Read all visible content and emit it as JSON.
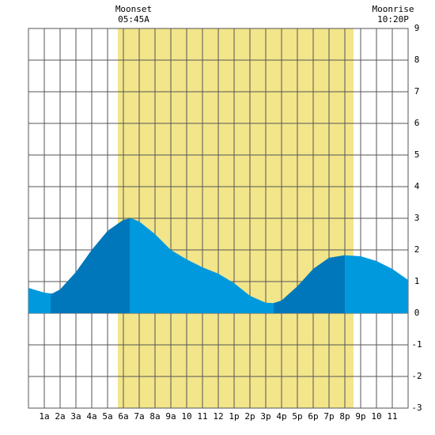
{
  "chart_data": {
    "type": "area",
    "events": [
      {
        "label": "Moonset",
        "time": "05:45A"
      },
      {
        "label": "Moonrise",
        "time": "10:20P"
      }
    ],
    "daylight": [
      5.65,
      20.55
    ],
    "rising_ranges": [
      [
        1.4,
        6.4
      ],
      [
        15.5,
        20
      ]
    ],
    "x": [
      0,
      1,
      1.5,
      2,
      3,
      4,
      5,
      6,
      6.5,
      7,
      8,
      9,
      10,
      11,
      12,
      13,
      14,
      15,
      15.5,
      16,
      17,
      18,
      19,
      20,
      21,
      22,
      23,
      24
    ],
    "values": [
      0.8,
      0.65,
      0.62,
      0.75,
      1.3,
      2.0,
      2.6,
      2.95,
      3.0,
      2.9,
      2.5,
      2.0,
      1.7,
      1.45,
      1.25,
      0.95,
      0.55,
      0.33,
      0.32,
      0.4,
      0.85,
      1.4,
      1.75,
      1.83,
      1.8,
      1.65,
      1.4,
      1.05
    ],
    "color": "#0099dd",
    "rising_color": "#0077bb",
    "daylight_color": "#f2e58a",
    "xlim": [
      0,
      24
    ],
    "xticks": [
      {
        "value": 1,
        "label": "1a"
      },
      {
        "value": 2,
        "label": "2a"
      },
      {
        "value": 3,
        "label": "3a"
      },
      {
        "value": 4,
        "label": "4a"
      },
      {
        "value": 5,
        "label": "5a"
      },
      {
        "value": 6,
        "label": "6a"
      },
      {
        "value": 7,
        "label": "7a"
      },
      {
        "value": 8,
        "label": "8a"
      },
      {
        "value": 9,
        "label": "9a"
      },
      10,
      11,
      12,
      {
        "value": 13,
        "label": "1p"
      },
      {
        "value": 14,
        "label": "2p"
      },
      {
        "value": 15,
        "label": "3p"
      },
      {
        "value": 16,
        "label": "4p"
      },
      {
        "value": 17,
        "label": "5p"
      },
      {
        "value": 18,
        "label": "6p"
      },
      {
        "value": 19,
        "label": "7p"
      },
      {
        "value": 20,
        "label": "8p"
      },
      {
        "value": 21,
        "label": "9p"
      },
      {
        "value": 22,
        "label": "10"
      },
      {
        "value": 23,
        "label": "11"
      }
    ],
    "ylim": [
      -3,
      9
    ],
    "yticks": [
      -3,
      -2,
      -1,
      0,
      1,
      2,
      3,
      4,
      5,
      6,
      7,
      8,
      9
    ],
    "grid": true
  }
}
